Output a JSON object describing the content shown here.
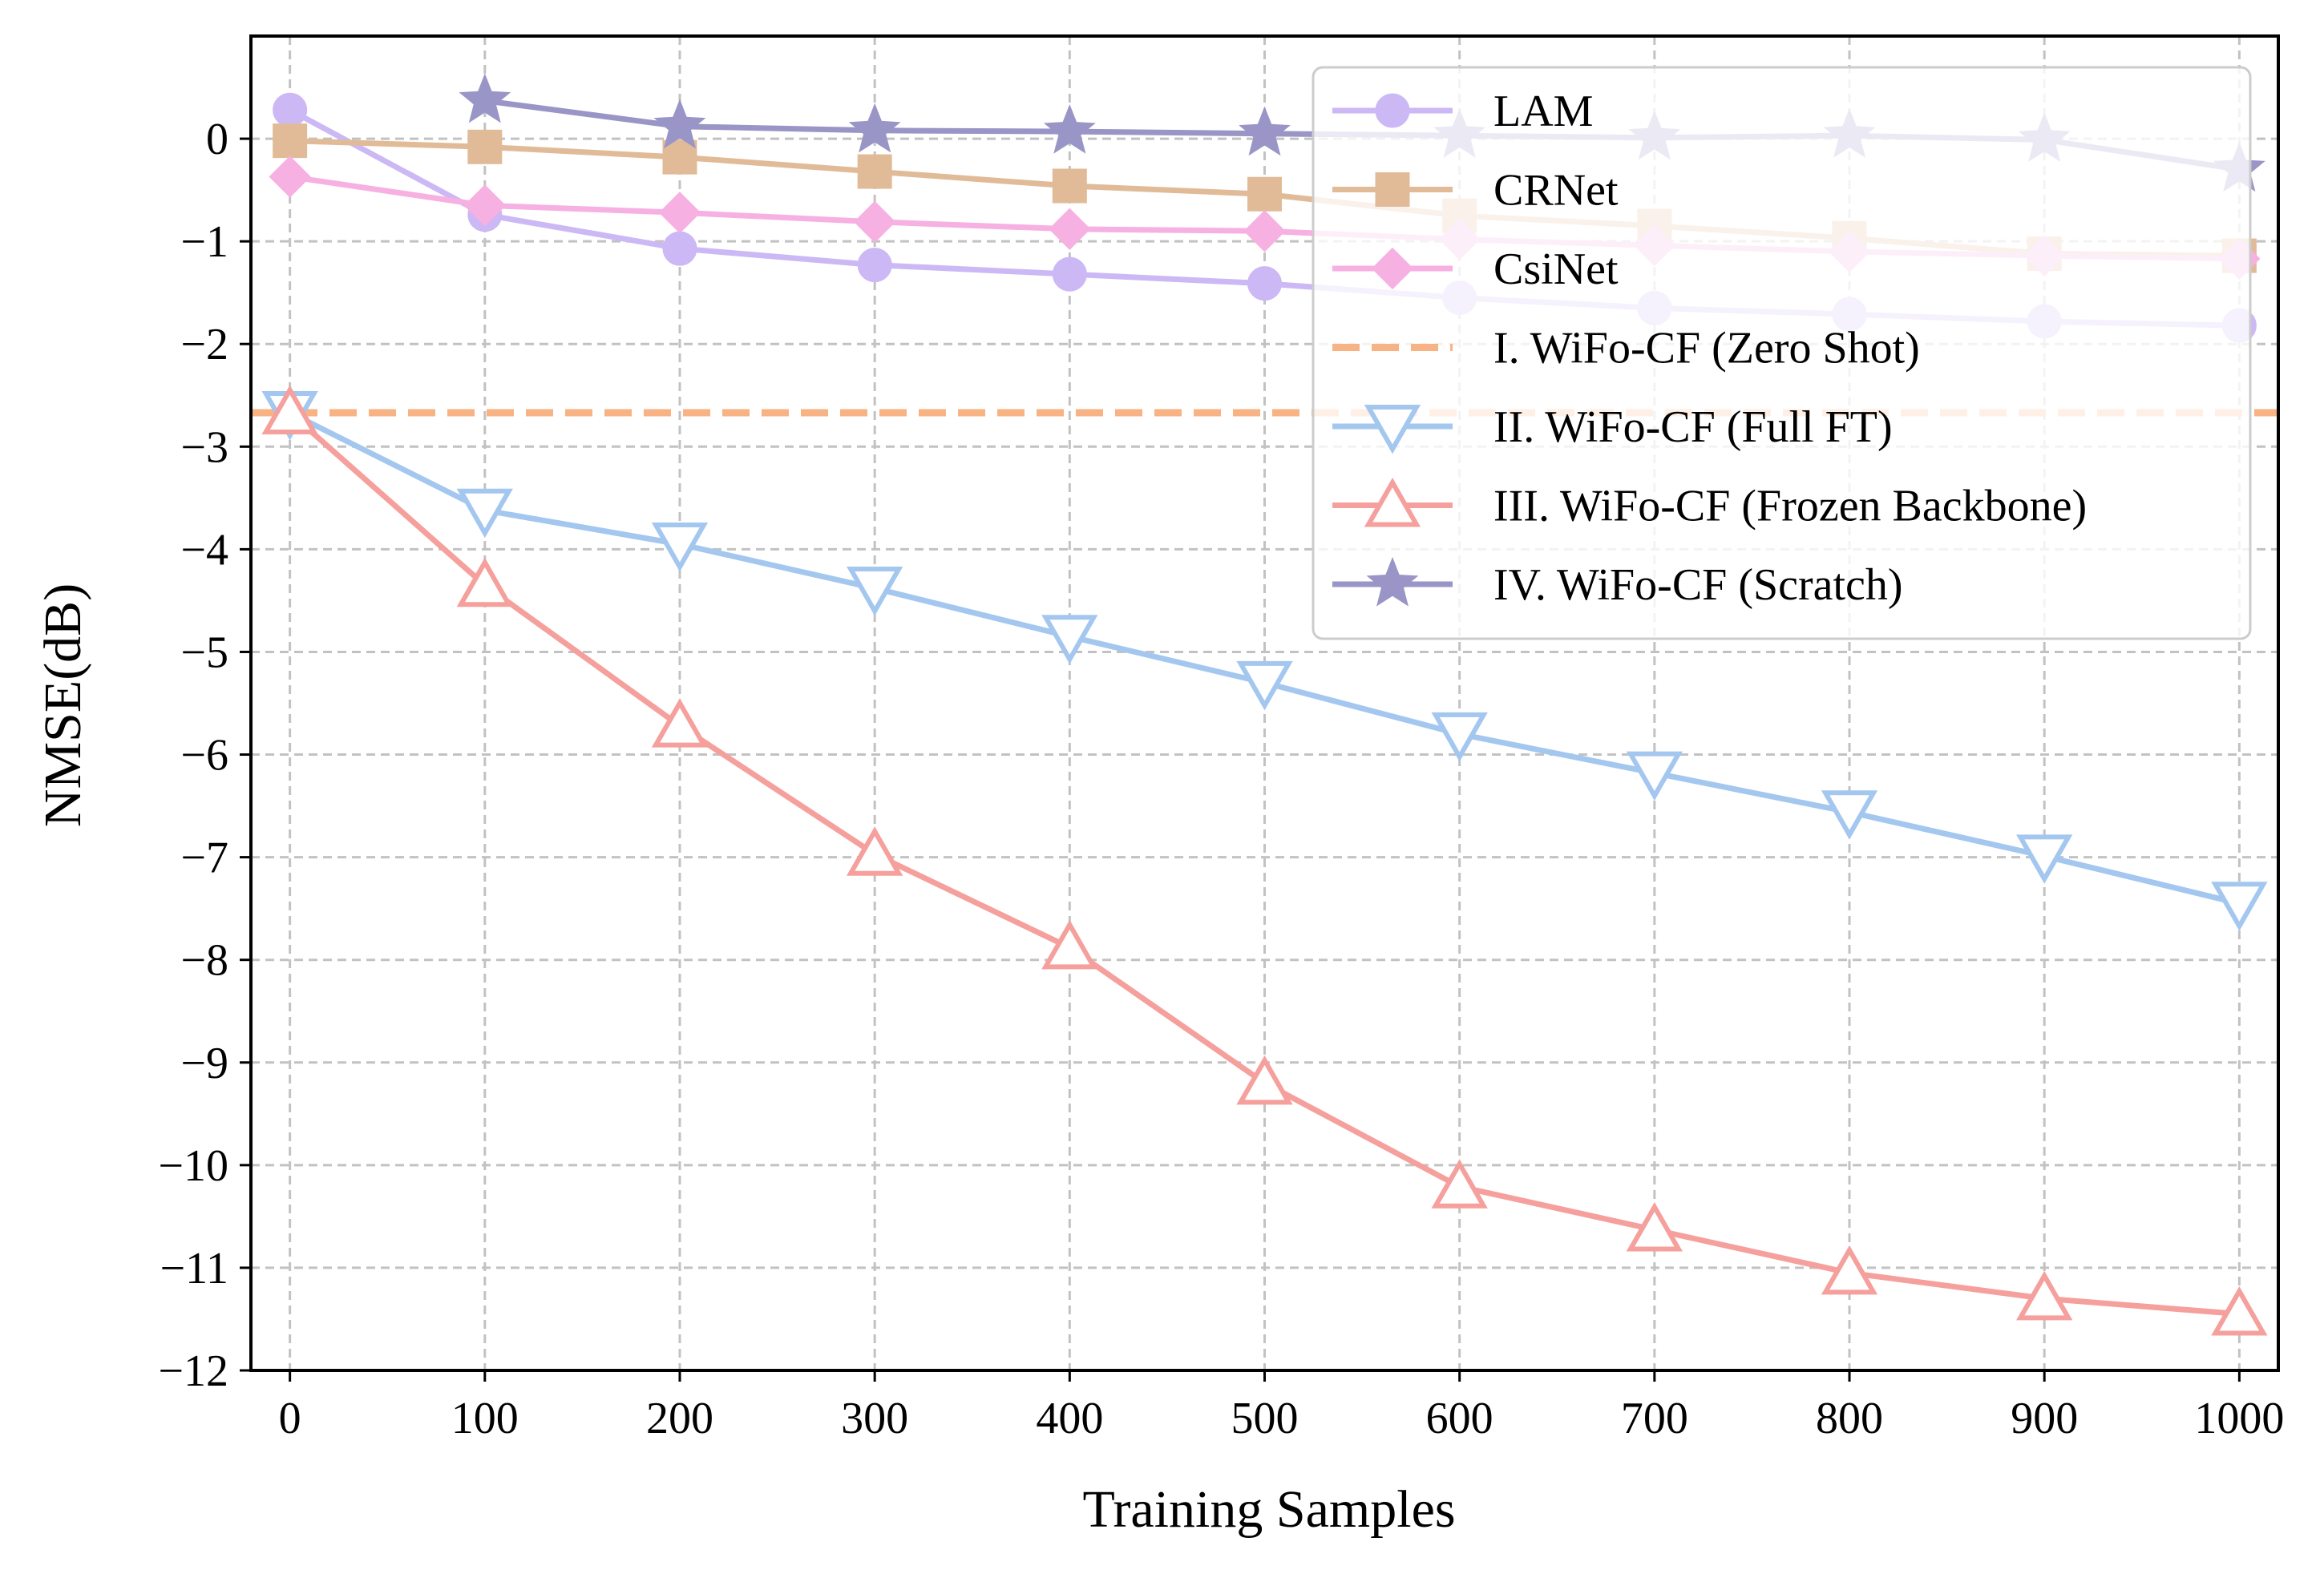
{
  "chart_data": {
    "type": "line",
    "title": "",
    "xlabel": "Training Samples",
    "ylabel": "NMSE(dB)",
    "xlim": [
      -20,
      1020
    ],
    "ylim": [
      -12,
      1
    ],
    "xticks": [
      0,
      100,
      200,
      300,
      400,
      500,
      600,
      700,
      800,
      900,
      1000
    ],
    "yticks": [
      0,
      -1,
      -2,
      -3,
      -4,
      -5,
      -6,
      -7,
      -8,
      -9,
      -10,
      -11,
      -12
    ],
    "xtick_labels": [
      "0",
      "100",
      "200",
      "300",
      "400",
      "500",
      "600",
      "700",
      "800",
      "900",
      "1000"
    ],
    "ytick_labels": [
      "0",
      "−1",
      "−2",
      "−3",
      "−4",
      "−5",
      "−6",
      "−7",
      "−8",
      "−9",
      "−10",
      "−11",
      "−12"
    ],
    "grid": true,
    "legend_position": "top-right",
    "series": [
      {
        "name": "LAM",
        "color": "#cbb8f5",
        "marker": "circle",
        "linestyle": "solid",
        "x": [
          0,
          100,
          200,
          300,
          400,
          500,
          600,
          700,
          800,
          900,
          1000
        ],
        "values": [
          0.28,
          -0.74,
          -1.07,
          -1.23,
          -1.32,
          -1.41,
          -1.55,
          -1.65,
          -1.71,
          -1.78,
          -1.82
        ]
      },
      {
        "name": "CRNet",
        "color": "#e1bb98",
        "marker": "square",
        "linestyle": "solid",
        "x": [
          0,
          100,
          200,
          300,
          400,
          500,
          600,
          700,
          800,
          900,
          1000
        ],
        "values": [
          -0.02,
          -0.08,
          -0.18,
          -0.32,
          -0.46,
          -0.54,
          -0.75,
          -0.85,
          -0.97,
          -1.12,
          -1.14
        ]
      },
      {
        "name": "CsiNet",
        "color": "#f6b0e2",
        "marker": "diamond",
        "linestyle": "solid",
        "x": [
          0,
          100,
          200,
          300,
          400,
          500,
          600,
          700,
          800,
          900,
          1000
        ],
        "values": [
          -0.37,
          -0.65,
          -0.72,
          -0.81,
          -0.88,
          -0.9,
          -0.98,
          -1.04,
          -1.1,
          -1.14,
          -1.17
        ]
      },
      {
        "name": "I. WiFo-CF (Zero Shot)",
        "color": "#f8b384",
        "marker": "none",
        "linestyle": "dashed",
        "x": [
          -20,
          1020
        ],
        "values": [
          -2.67,
          -2.67
        ]
      },
      {
        "name": "II. WiFo-CF (Full FT)",
        "color": "#a4c7ef",
        "marker": "triangle-down",
        "linestyle": "solid",
        "x": [
          0,
          100,
          200,
          300,
          400,
          500,
          600,
          700,
          800,
          900,
          1000
        ],
        "values": [
          -2.67,
          -3.62,
          -3.95,
          -4.38,
          -4.85,
          -5.3,
          -5.8,
          -6.18,
          -6.56,
          -6.99,
          -7.45
        ]
      },
      {
        "name": "III. WiFo-CF (Frozen Backbone)",
        "color": "#f5a09c",
        "marker": "triangle-up",
        "linestyle": "solid",
        "x": [
          0,
          100,
          200,
          300,
          400,
          500,
          600,
          700,
          800,
          900,
          1000
        ],
        "values": [
          -2.67,
          -4.35,
          -5.72,
          -6.97,
          -7.88,
          -9.2,
          -10.21,
          -10.63,
          -11.05,
          -11.3,
          -11.45
        ]
      },
      {
        "name": "IV. WiFo-CF (Scratch)",
        "color": "#9a95c7",
        "marker": "star",
        "linestyle": "solid",
        "x": [
          100,
          200,
          300,
          400,
          500,
          600,
          700,
          800,
          900,
          1000
        ],
        "values": [
          0.37,
          0.12,
          0.08,
          0.07,
          0.05,
          0.03,
          0.01,
          0.03,
          -0.01,
          -0.3
        ]
      }
    ]
  }
}
